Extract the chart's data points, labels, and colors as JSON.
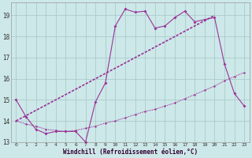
{
  "xlabel": "Windchill (Refroidissement éolien,°C)",
  "bg_color": "#cde8e8",
  "grid_color": "#aacccc",
  "line_color": "#993399",
  "xlim": [
    -0.5,
    23.5
  ],
  "ylim": [
    13.0,
    19.6
  ],
  "yticks": [
    13,
    14,
    15,
    16,
    17,
    18,
    19
  ],
  "xticks": [
    0,
    1,
    2,
    3,
    4,
    5,
    6,
    7,
    8,
    9,
    10,
    11,
    12,
    13,
    14,
    15,
    16,
    17,
    18,
    19,
    20,
    21,
    22,
    23
  ],
  "series1_x": [
    0,
    1,
    2,
    3,
    4,
    5,
    6,
    7,
    8,
    9,
    10,
    11,
    12,
    13,
    14,
    15,
    16,
    17,
    18,
    19,
    20,
    21,
    22,
    23
  ],
  "series1_y": [
    15.0,
    14.2,
    13.6,
    13.4,
    13.5,
    13.5,
    13.5,
    13.0,
    14.9,
    15.8,
    18.5,
    19.3,
    19.15,
    19.2,
    18.4,
    18.5,
    18.9,
    19.2,
    18.7,
    18.8,
    18.9,
    16.7,
    15.3,
    14.7
  ],
  "series2_x": [
    0,
    1,
    2,
    3,
    4,
    5,
    6,
    7,
    8,
    9,
    10,
    11,
    12,
    13,
    14,
    15,
    16,
    17,
    18,
    19,
    20,
    21,
    22,
    23
  ],
  "series2_y": [
    14.0,
    13.85,
    13.75,
    13.6,
    13.55,
    13.5,
    13.55,
    13.65,
    13.75,
    13.9,
    14.0,
    14.15,
    14.3,
    14.45,
    14.55,
    14.7,
    14.85,
    15.05,
    15.25,
    15.45,
    15.65,
    15.9,
    16.1,
    16.3
  ],
  "series3_x": [
    0,
    20
  ],
  "series3_y": [
    14.0,
    19.0
  ]
}
